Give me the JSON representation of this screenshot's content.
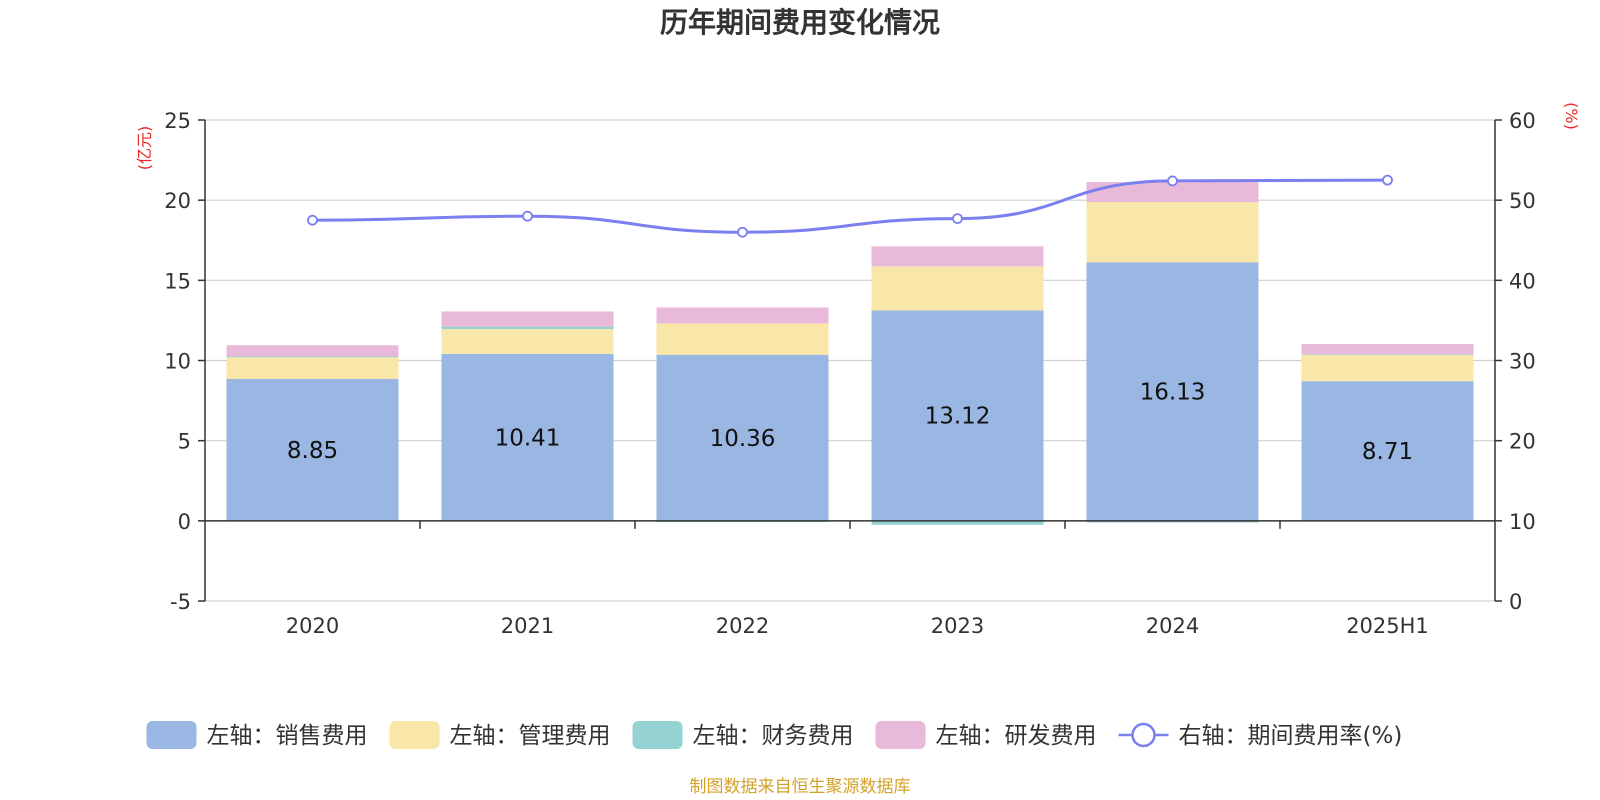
{
  "chart_data": {
    "type": "bar",
    "title": "历年期间费用变化情况",
    "categories": [
      "2020",
      "2021",
      "2022",
      "2023",
      "2024",
      "2025H1"
    ],
    "left_axis": {
      "unit": "(亿元)",
      "ylim": [
        -5,
        25
      ],
      "ticks": [
        25,
        20,
        15,
        10,
        5,
        0,
        -5
      ]
    },
    "right_axis": {
      "unit": "(%)",
      "ylim": [
        0,
        60
      ],
      "ticks": [
        60,
        50,
        40,
        30,
        20,
        10,
        0
      ]
    },
    "series": [
      {
        "name": "左轴：销售费用",
        "kind": "bar",
        "axis": "left",
        "color": "#9ab6e2",
        "values": [
          8.85,
          10.41,
          10.36,
          13.12,
          16.13,
          8.71
        ],
        "labels": [
          "8.85",
          "10.41",
          "10.36",
          "13.12",
          "16.13",
          "8.71"
        ]
      },
      {
        "name": "左轴：管理费用",
        "kind": "bar",
        "axis": "left",
        "color": "#f8e7a9",
        "values": [
          1.35,
          1.55,
          1.95,
          2.75,
          3.75,
          1.65
        ]
      },
      {
        "name": "左轴：财务费用",
        "kind": "bar",
        "axis": "left",
        "color": "#95d3d3",
        "values": [
          0.05,
          0.15,
          -0.08,
          -0.25,
          -0.1,
          0.02
        ]
      },
      {
        "name": "左轴：研发费用",
        "kind": "bar",
        "axis": "left",
        "color": "#e8b9d9",
        "values": [
          0.7,
          0.95,
          1.0,
          1.25,
          1.25,
          0.65
        ]
      },
      {
        "name": "右轴：期间费用率(%)",
        "kind": "line",
        "axis": "right",
        "color": "#7b7ff0",
        "values": [
          47.5,
          48.0,
          46.0,
          47.7,
          52.4,
          52.5
        ]
      }
    ],
    "grid": true,
    "legend": "bottom",
    "source": "制图数据来自恒生聚源数据库"
  }
}
